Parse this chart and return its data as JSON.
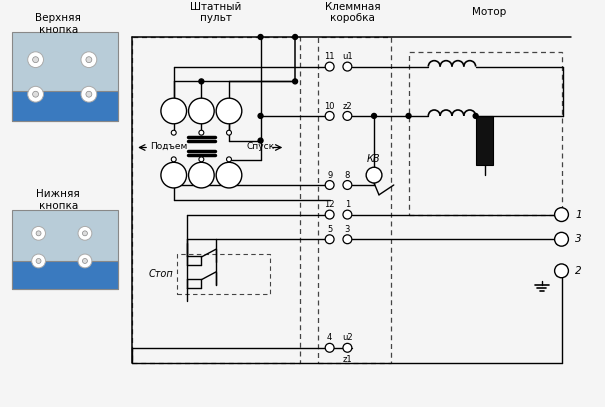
{
  "bg": "#f5f5f5",
  "lc": "#000000",
  "labels": {
    "verkh": "Верхняя\nкнопка",
    "nizhn": "Нижняя\nкнопка",
    "shtat": "Штатный\nпульт",
    "klemm": "Клеммная\nкоробка",
    "motor": "Мотор",
    "podem": "Подъем",
    "spusk": "Спуск",
    "stop": "Стоп",
    "kb": "КВ"
  },
  "photo_top_bg": "#c8d8e8",
  "photo_top_blue": "#3a7abf",
  "photo_bot_bg": "#c8d8e8",
  "photo_bot_blue": "#3a7abf"
}
